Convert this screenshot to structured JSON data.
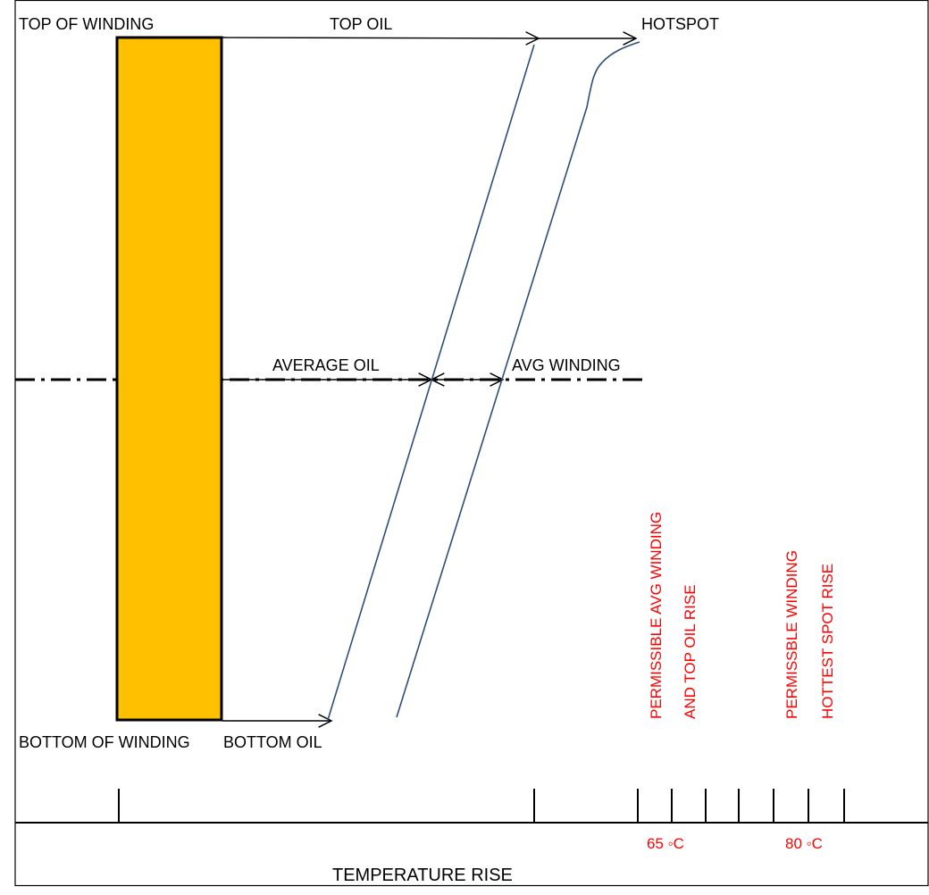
{
  "colors": {
    "winding_fill": "#FFC000",
    "curve": "#2E4D7B",
    "annotation": "#FF0000",
    "line": "#000000"
  },
  "labels": {
    "top_of_winding": "TOP OF WINDING",
    "top_oil": "TOP OIL",
    "hotspot": "HOTSPOT",
    "average_oil": "AVERAGE OIL",
    "avg_winding": "AVG WINDING",
    "bottom_of_winding": "BOTTOM OF WINDING",
    "bottom_oil": "BOTTOM OIL",
    "permissible_avg_line1": "PERMISSIBLE AVG WINDING",
    "permissible_avg_line2": "AND TOP OIL RISE",
    "permissible_hot_line1": "PERMISSBLE WINDING",
    "permissible_hot_line2": "HOTTEST SPOT RISE",
    "temp_65": "65 ◦C",
    "temp_80": "80 ◦C",
    "x_axis": "TEMPERATURE RISE"
  }
}
